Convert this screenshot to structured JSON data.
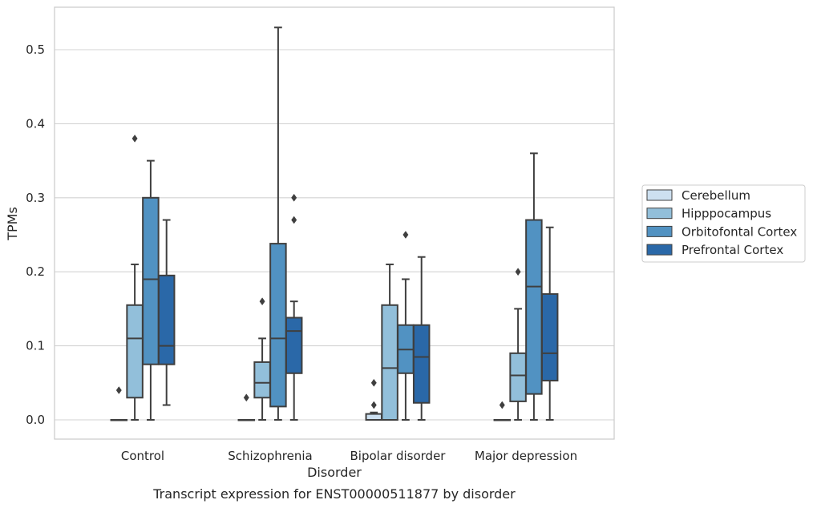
{
  "caption": "Transcript expression for ENST00000511877 by disorder",
  "chart_data": {
    "type": "box",
    "xlabel": "Disorder",
    "ylabel": "TPMs",
    "ylim": [
      -0.025,
      0.556
    ],
    "yticks": [
      0.0,
      0.1,
      0.2,
      0.3,
      0.4,
      0.5
    ],
    "ytick_labels": [
      "0.0",
      "0.1",
      "0.2",
      "0.3",
      "0.4",
      "0.5"
    ],
    "grid": "horizontal",
    "legend_position": "right, outside plot",
    "categories": [
      "Control",
      "Schizophrenia",
      "Bipolar disorder",
      "Major depression"
    ],
    "series": [
      {
        "name": "Cerebellum",
        "color": "#cde0f0",
        "boxes": [
          {
            "min": 0.0,
            "q1": 0.0,
            "median": 0.0,
            "q3": 0.0,
            "max": 0.0,
            "outliers": [
              0.04
            ]
          },
          {
            "min": 0.0,
            "q1": 0.0,
            "median": 0.0,
            "q3": 0.0,
            "max": 0.0,
            "outliers": [
              0.03
            ]
          },
          {
            "min": 0.0,
            "q1": 0.0,
            "median": 0.0,
            "q3": 0.008,
            "max": 0.01,
            "outliers": [
              0.02,
              0.05
            ]
          },
          {
            "min": 0.0,
            "q1": 0.0,
            "median": 0.0,
            "q3": 0.0,
            "max": 0.0,
            "outliers": [
              0.02
            ]
          }
        ]
      },
      {
        "name": "Hipppocampus",
        "color": "#92bfda",
        "boxes": [
          {
            "min": 0.0,
            "q1": 0.03,
            "median": 0.11,
            "q3": 0.155,
            "max": 0.21,
            "outliers": [
              0.38
            ]
          },
          {
            "min": 0.0,
            "q1": 0.03,
            "median": 0.05,
            "q3": 0.078,
            "max": 0.11,
            "outliers": [
              0.16
            ]
          },
          {
            "min": 0.0,
            "q1": 0.0,
            "median": 0.07,
            "q3": 0.155,
            "max": 0.21,
            "outliers": []
          },
          {
            "min": 0.0,
            "q1": 0.025,
            "median": 0.06,
            "q3": 0.09,
            "max": 0.15,
            "outliers": [
              0.2
            ]
          }
        ]
      },
      {
        "name": "Orbitofontal Cortex",
        "color": "#5192c2",
        "boxes": [
          {
            "min": 0.0,
            "q1": 0.075,
            "median": 0.19,
            "q3": 0.3,
            "max": 0.35,
            "outliers": []
          },
          {
            "min": 0.0,
            "q1": 0.018,
            "median": 0.11,
            "q3": 0.238,
            "max": 0.53,
            "outliers": []
          },
          {
            "min": 0.0,
            "q1": 0.063,
            "median": 0.095,
            "q3": 0.128,
            "max": 0.19,
            "outliers": [
              0.25
            ]
          },
          {
            "min": 0.0,
            "q1": 0.035,
            "median": 0.18,
            "q3": 0.27,
            "max": 0.36,
            "outliers": []
          }
        ]
      },
      {
        "name": "Prefrontal Cortex",
        "color": "#2a68a8",
        "boxes": [
          {
            "min": 0.02,
            "q1": 0.075,
            "median": 0.1,
            "q3": 0.195,
            "max": 0.27,
            "outliers": []
          },
          {
            "min": 0.0,
            "q1": 0.063,
            "median": 0.12,
            "q3": 0.138,
            "max": 0.16,
            "outliers": [
              0.27,
              0.3
            ]
          },
          {
            "min": 0.0,
            "q1": 0.023,
            "median": 0.085,
            "q3": 0.128,
            "max": 0.22,
            "outliers": []
          },
          {
            "min": 0.0,
            "q1": 0.053,
            "median": 0.09,
            "q3": 0.17,
            "max": 0.26,
            "outliers": []
          }
        ]
      }
    ]
  }
}
